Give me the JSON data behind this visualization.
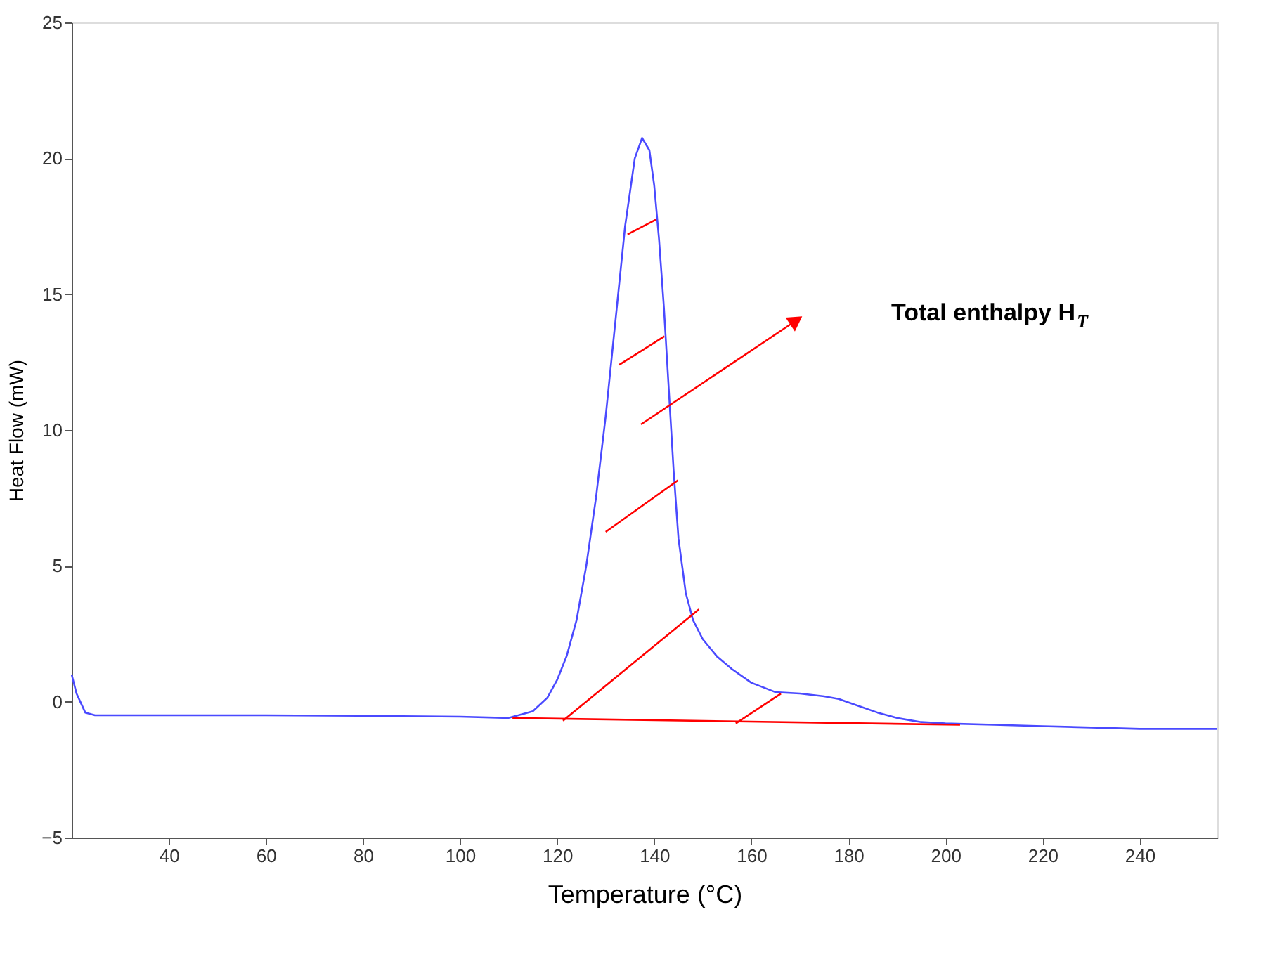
{
  "chart_data": {
    "type": "line",
    "xlabel": "Temperature (°C)",
    "ylabel": "Heat Flow (mW)",
    "xlim": [
      20,
      256
    ],
    "xticks": [
      40,
      60,
      80,
      100,
      120,
      140,
      160,
      180,
      200,
      220,
      240
    ],
    "ylim": [
      -5,
      25
    ],
    "yticks": [
      -5,
      0,
      5,
      10,
      15,
      20,
      25
    ],
    "grid": false,
    "marker": "none",
    "line_style": "solid",
    "annotations": [
      "Total enthalpy H$_{T}$"
    ],
    "series": [
      {
        "color": "#4a4aff",
        "x": [
          20,
          21,
          22.8,
          24.8,
          40,
          60,
          80,
          100,
          110,
          115,
          118,
          120,
          122,
          124,
          126,
          128,
          130,
          132,
          134,
          136,
          137.5,
          139,
          140,
          141,
          142,
          143,
          144,
          145,
          146.5,
          148,
          150,
          153,
          156,
          160,
          165,
          170,
          175,
          178,
          182,
          186,
          190,
          195,
          200,
          210,
          220,
          230,
          240,
          256
        ],
        "values": [
          1.0,
          0.3,
          -0.4,
          -0.5,
          -0.5,
          -0.5,
          -0.52,
          -0.55,
          -0.6,
          -0.35,
          0.15,
          0.8,
          1.7,
          3.0,
          5.0,
          7.5,
          10.5,
          14,
          17.5,
          20,
          20.75,
          20.3,
          19,
          17,
          14.5,
          11.5,
          8.5,
          6,
          4,
          3,
          2.3,
          1.65,
          1.2,
          0.7,
          0.35,
          0.3,
          0.2,
          0.1,
          -0.15,
          -0.4,
          -0.6,
          -0.75,
          -0.8,
          -0.85,
          -0.9,
          -0.95,
          -1.0,
          -1.0
        ]
      },
      {
        "color": "#ff0000",
        "x": [
          110.8,
          203
        ],
        "values": [
          -0.6,
          -0.85
        ]
      },
      {
        "color": "#ff0000",
        "x": [
          134.5,
          140.4
        ],
        "values": [
          17.2,
          17.75
        ]
      },
      {
        "color": "#ff0000",
        "x": [
          132.8,
          142.1
        ],
        "values": [
          12.4,
          13.45
        ]
      },
      {
        "color": "#ff0000",
        "x": [
          130,
          144.9
        ],
        "values": [
          6.25,
          8.15
        ]
      },
      {
        "color": "#ff0000",
        "x": [
          121.2,
          149.2
        ],
        "values": [
          -0.7,
          3.4
        ]
      },
      {
        "color": "#ff0000",
        "x": [
          156.8,
          166.1
        ],
        "values": [
          -0.8,
          0.3
        ]
      }
    ]
  }
}
